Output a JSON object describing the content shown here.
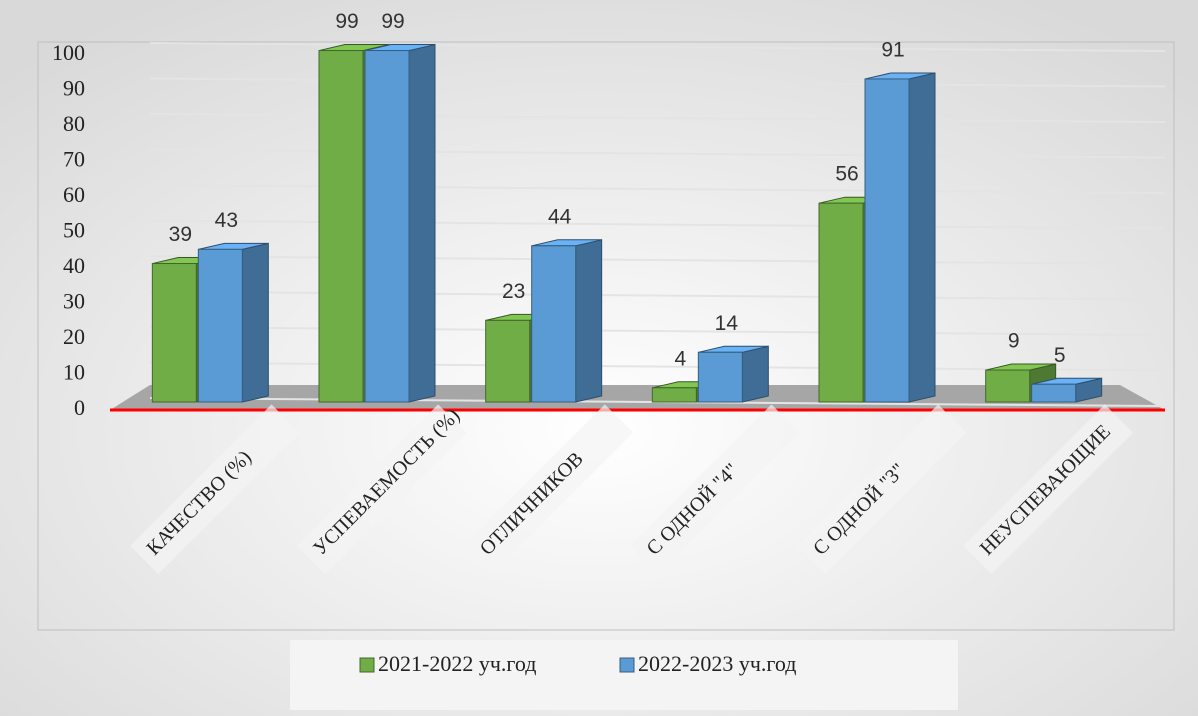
{
  "chart_data": {
    "type": "bar3d",
    "categories": [
      "КАЧЕСТВО (%)",
      "УСПЕВАЕМОСТЬ (%)",
      "ОТЛИЧНИКОВ",
      "С ОДНОЙ \"4\"",
      "С ОДНОЙ \"3\"",
      "НЕУСПЕВАЮЩИЕ"
    ],
    "series": [
      {
        "name": "2021-2022 уч.год",
        "color": "#70ad47",
        "values": [
          39,
          99,
          23,
          4,
          56,
          9
        ]
      },
      {
        "name": "2022-2023 уч.год",
        "color": "#5b9bd5",
        "values": [
          43,
          99,
          44,
          14,
          91,
          5
        ]
      }
    ],
    "ylim": [
      0,
      100
    ],
    "yticks": [
      0,
      10,
      20,
      30,
      40,
      50,
      60,
      70,
      80,
      90,
      100
    ],
    "grid": true,
    "legend": "bottom"
  }
}
